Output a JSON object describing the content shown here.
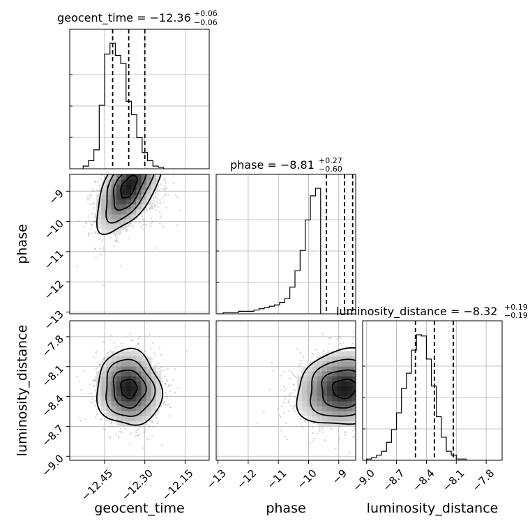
{
  "chart_data": {
    "type": "corner",
    "parameters": [
      "geocent_time",
      "phase",
      "luminosity_distance"
    ],
    "axis_labels": {
      "geocent_time": "geocent_time",
      "phase": "phase",
      "luminosity_distance": "luminosity_distance"
    },
    "titles": [
      {
        "param": "geocent_time",
        "name": "geocent_time",
        "value": "−12.36",
        "plus": "+0.06",
        "minus": "−0.06"
      },
      {
        "param": "phase",
        "name": "phase",
        "value": "−8.81",
        "plus": "+0.27",
        "minus": "−0.60"
      },
      {
        "param": "luminosity_distance",
        "name": "luminosity_distance",
        "value": "−8.32",
        "plus": "+0.19",
        "minus": "−0.19"
      }
    ],
    "ranges": {
      "geocent_time": [
        -12.58,
        -12.06
      ],
      "phase": [
        -13.06,
        -8.44
      ],
      "luminosity_distance": [
        -9.04,
        -7.64
      ]
    },
    "ticks": {
      "geocent_time": {
        "values": [
          -12.45,
          -12.3,
          -12.15
        ],
        "labels": [
          "−12.45",
          "−12.30",
          "−12.15"
        ]
      },
      "phase": {
        "values": [
          -13,
          -12,
          -11,
          -10,
          -9
        ],
        "labels": [
          "−13",
          "−12",
          "−11",
          "−10",
          "−9"
        ]
      },
      "luminosity_distance": {
        "values": [
          -9.0,
          -8.7,
          -8.4,
          -8.1,
          -7.8
        ],
        "labels": [
          "−9.0",
          "−8.7",
          "−8.4",
          "−8.1",
          "−7.8"
        ]
      }
    },
    "histograms": {
      "geocent_time": {
        "bin_start": -12.53,
        "bin_width": 0.02,
        "counts": [
          0.02,
          0.06,
          0.14,
          0.47,
          0.85,
          0.93,
          0.84,
          0.78,
          0.5,
          0.4,
          0.23,
          0.12,
          0.06,
          0.02,
          0.01
        ],
        "quantiles": [
          -12.42,
          -12.36,
          -12.3
        ]
      },
      "phase": {
        "bin_start": -13.0,
        "bin_width": 0.17,
        "counts": [
          0.0,
          0.01,
          0.01,
          0.01,
          0.02,
          0.02,
          0.02,
          0.03,
          0.04,
          0.05,
          0.06,
          0.07,
          0.09,
          0.12,
          0.21,
          0.34,
          0.5,
          0.74,
          0.93,
          0.99
        ],
        "quantiles": [
          -9.41,
          -8.81,
          -8.54
        ]
      },
      "luminosity_distance": {
        "bin_start": -9.0,
        "bin_width": 0.05,
        "counts": [
          0.01,
          0.02,
          0.04,
          0.07,
          0.14,
          0.24,
          0.37,
          0.56,
          0.68,
          0.86,
          0.98,
          0.97,
          0.79,
          0.58,
          0.34,
          0.18,
          0.07,
          0.04,
          0.01,
          0.01
        ],
        "quantiles": [
          -8.51,
          -8.32,
          -8.13
        ]
      }
    },
    "densities": [
      {
        "x": "geocent_time",
        "y": "phase",
        "mean": [
          -12.36,
          -8.85
        ],
        "sd": [
          0.06,
          0.75
        ],
        "rho": 0.55
      },
      {
        "x": "geocent_time",
        "y": "luminosity_distance",
        "mean": [
          -12.36,
          -8.32
        ],
        "sd": [
          0.06,
          0.19
        ],
        "rho": -0.05
      },
      {
        "x": "phase",
        "y": "luminosity_distance",
        "mean": [
          -8.81,
          -8.32
        ],
        "sd": [
          0.8,
          0.19
        ],
        "rho": 0.1
      }
    ],
    "grid": true,
    "histogram_style": "step",
    "quantile_line_style": "dashed"
  }
}
